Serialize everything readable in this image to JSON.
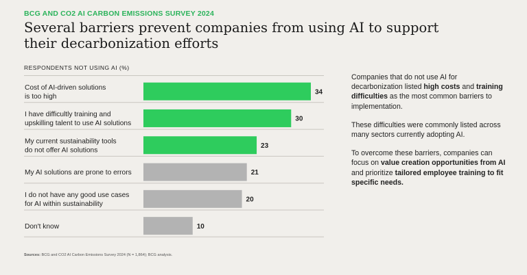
{
  "header": {
    "eyebrow": "BCG AND CO2 AI CARBON EMISSIONS SURVEY 2024",
    "title": "Several barriers prevent companies from using AI to support their decarbonization efforts"
  },
  "chart_data": {
    "type": "bar",
    "orientation": "horizontal",
    "subtitle": "RESPONDENTS NOT USING AI (%)",
    "xlim": [
      0,
      34
    ],
    "categories": [
      [
        "Cost of AI-driven solutions",
        "is too high"
      ],
      [
        "I have difficultly training and",
        "upskilling talent to use AI solutions"
      ],
      [
        "My current sustainability tools",
        "do not offer AI solutions"
      ],
      [
        "My AI solutions are prone to errors"
      ],
      [
        "I do not have any good use cases",
        "for AI within sustainability"
      ],
      [
        "Don't know"
      ]
    ],
    "values": [
      34,
      30,
      23,
      21,
      20,
      10
    ],
    "highlighted": [
      true,
      true,
      true,
      false,
      false,
      false
    ],
    "colors": {
      "highlight": "#2ecc5d",
      "muted": "#b3b3b3",
      "divider": "#c9c6c0"
    }
  },
  "sidebar": {
    "p1": {
      "t1": "Companies that do not use AI for decarbonization listed ",
      "b1": "high costs",
      "t2": " and ",
      "b2": "training difficulties",
      "t3": " as the most common barriers to implementation."
    },
    "p2": "These difficulties were commonly listed across many sectors currently adopting AI.",
    "p3": {
      "t1": "To overcome these barriers, companies can focus on ",
      "b1": "value creation opportunities from AI",
      "t2": " and prioritize ",
      "b2": "tailored employee training to fit specific needs."
    }
  },
  "footer": {
    "source_label": "Sources:",
    "source_text": " BCG and CO2 AI Carbon Emissions Survey 2024 (N = 1,864); BCG analysis."
  }
}
